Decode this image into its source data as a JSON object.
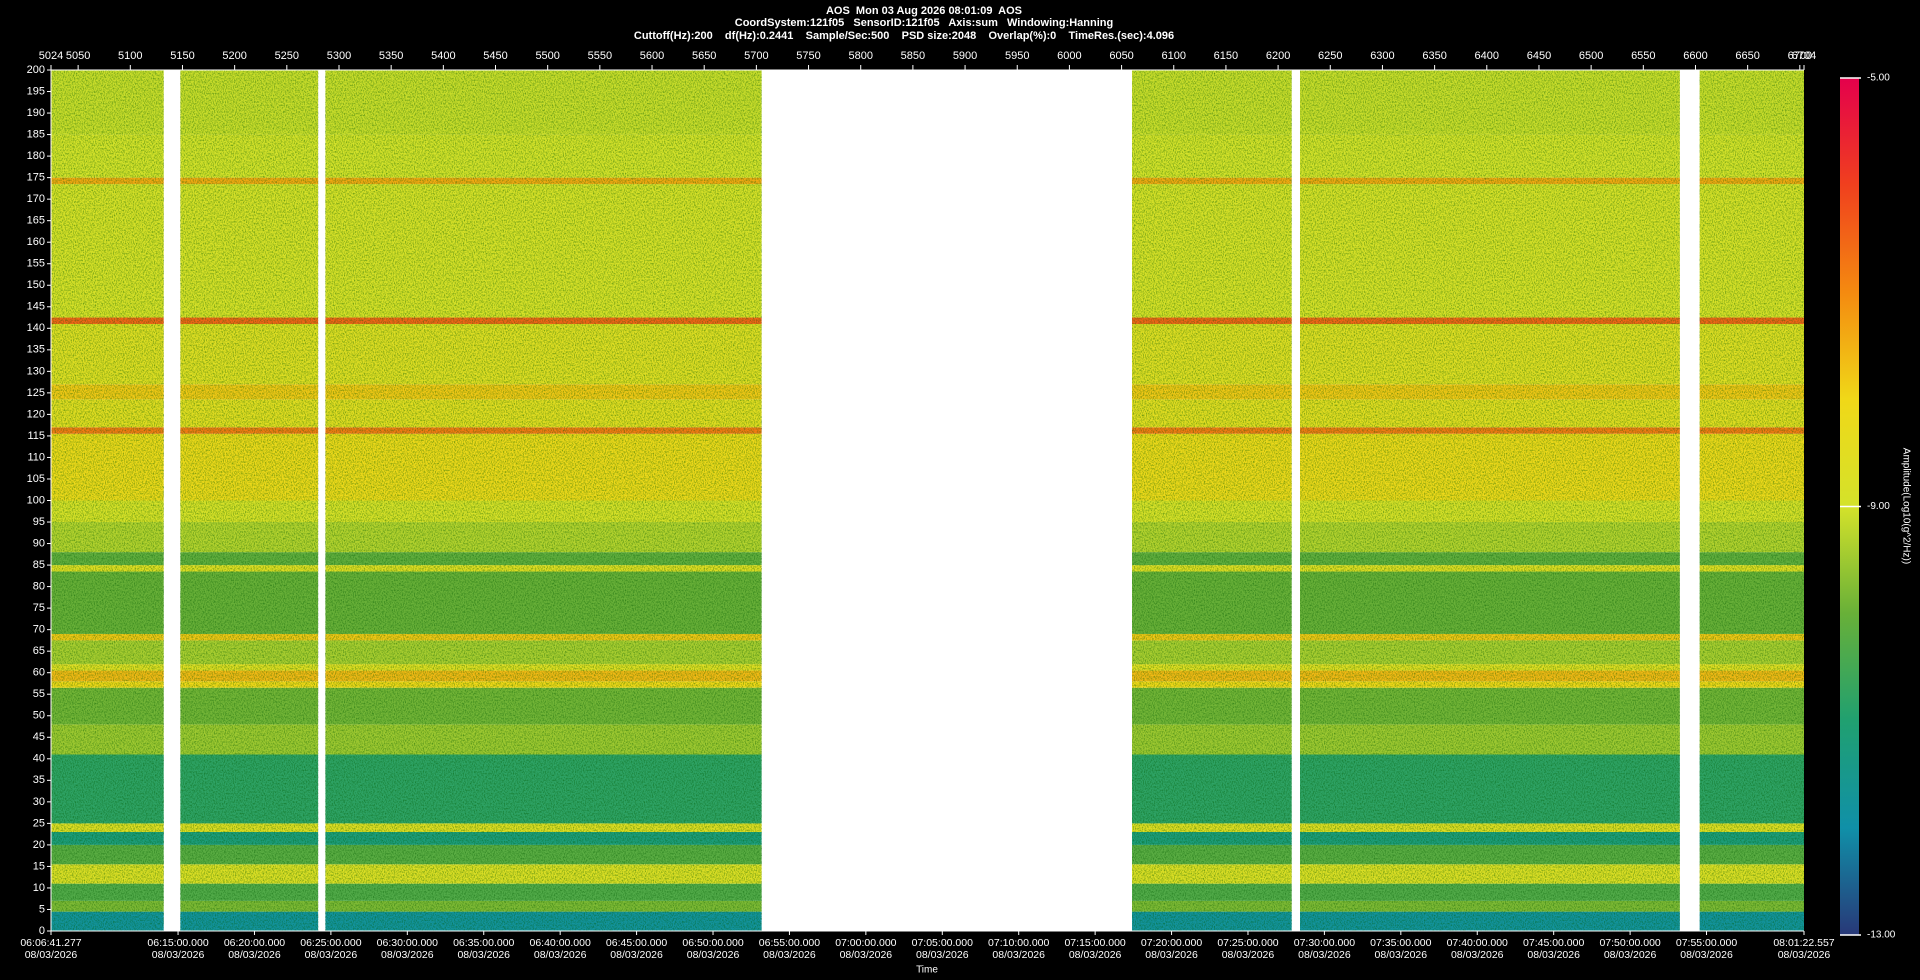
{
  "chart_data": {
    "type": "spectrogram",
    "title": "AOS  Mon 03 Aug 2026 08:01:09  AOS",
    "subtitle": "CoordSystem:121f05   SensorID:121f05   Axis:sum   Windowing:Hanning",
    "settings_line": "Cuttoff(Hz):200    df(Hz):0.2441    Sample/Sec:500    PSD size:2048    Overlap(%):0    TimeRes.(sec):4.096",
    "xlabel": "Time",
    "colorbar_label": "Amplitude(Log10(g^2/Hz))",
    "xlim": [
      5024,
      6704
    ],
    "xticks": [
      5024,
      5050,
      5100,
      5150,
      5200,
      5250,
      5300,
      5350,
      5400,
      5450,
      5500,
      5550,
      5600,
      5650,
      5700,
      5750,
      5800,
      5850,
      5900,
      5950,
      6000,
      6050,
      6100,
      6150,
      6200,
      6250,
      6300,
      6350,
      6400,
      6450,
      6500,
      6550,
      6600,
      6650,
      6700,
      6704
    ],
    "ylim": [
      0,
      200
    ],
    "yticks": [
      0,
      5,
      10,
      15,
      20,
      25,
      30,
      35,
      40,
      45,
      50,
      55,
      60,
      65,
      70,
      75,
      80,
      85,
      90,
      95,
      100,
      105,
      110,
      115,
      120,
      125,
      130,
      135,
      140,
      145,
      150,
      155,
      160,
      165,
      170,
      175,
      180,
      185,
      190,
      195,
      200
    ],
    "time_date": "08/03/2026",
    "time_ticks": [
      {
        "value": 5024,
        "label": "06:06:41.277"
      },
      {
        "value": 5145.76,
        "label": "06:15:00.000"
      },
      {
        "value": 5219.0,
        "label": "06:20:00.000"
      },
      {
        "value": 5292.24,
        "label": "06:25:00.000"
      },
      {
        "value": 5365.48,
        "label": "06:30:00.000"
      },
      {
        "value": 5438.72,
        "label": "06:35:00.000"
      },
      {
        "value": 5511.96,
        "label": "06:40:00.000"
      },
      {
        "value": 5585.2,
        "label": "06:45:00.000"
      },
      {
        "value": 5658.45,
        "label": "06:50:00.000"
      },
      {
        "value": 5731.69,
        "label": "06:55:00.000"
      },
      {
        "value": 5804.93,
        "label": "07:00:00.000"
      },
      {
        "value": 5878.17,
        "label": "07:05:00.000"
      },
      {
        "value": 5951.41,
        "label": "07:10:00.000"
      },
      {
        "value": 6024.65,
        "label": "07:15:00.000"
      },
      {
        "value": 6097.89,
        "label": "07:20:00.000"
      },
      {
        "value": 6171.13,
        "label": "07:25:00.000"
      },
      {
        "value": 6244.37,
        "label": "07:30:00.000"
      },
      {
        "value": 6317.62,
        "label": "07:35:00.000"
      },
      {
        "value": 6390.86,
        "label": "07:40:00.000"
      },
      {
        "value": 6464.1,
        "label": "07:45:00.000"
      },
      {
        "value": 6537.34,
        "label": "07:50:00.000"
      },
      {
        "value": 6610.58,
        "label": "07:55:00.000"
      },
      {
        "value": 6704,
        "label": "08:01:22.557"
      }
    ],
    "segments": [
      [
        5024,
        5132
      ],
      [
        5148,
        5280
      ],
      [
        5287,
        5705
      ],
      [
        6060,
        6213
      ],
      [
        6221,
        6585
      ],
      [
        6604,
        6704
      ]
    ],
    "freq_bins": [
      0,
      4.5,
      7,
      11,
      15.5,
      20,
      23,
      25,
      41,
      48,
      56.5,
      58,
      60.5,
      62,
      67.5,
      69,
      83.5,
      85,
      88,
      95,
      100,
      115.5,
      117,
      123.5,
      127,
      141,
      142.5,
      173.5,
      175,
      185,
      200
    ],
    "values": [
      -11.8,
      -9.8,
      -10.3,
      -8.7,
      -10.2,
      -11.2,
      -8.6,
      -10.8,
      -9.5,
      -9.9,
      -8.0,
      -7.6,
      -8.6,
      -9.4,
      -7.8,
      -10.0,
      -8.6,
      -10.1,
      -9.3,
      -8.9,
      -8.1,
      -6.8,
      -8.5,
      -7.8,
      -8.6,
      -6.5,
      -8.9,
      -7.4,
      -9.0,
      -9.1
    ],
    "clim": [
      -13,
      -5
    ],
    "cticks": [
      {
        "value": -5,
        "label": "-5.00"
      },
      {
        "value": -9,
        "label": "-9.00"
      },
      {
        "value": -13,
        "label": "-13.00"
      }
    ],
    "colorscale": [
      "#e4004c",
      "#f0401e",
      "#f48a10",
      "#f0d818",
      "#d4e22a",
      "#68b038",
      "#20a070",
      "#1090a8",
      "#283878"
    ]
  }
}
